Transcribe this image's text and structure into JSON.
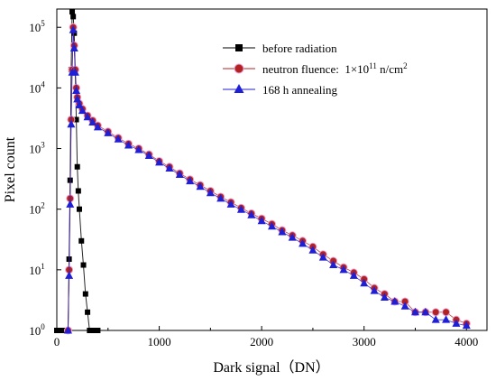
{
  "chart_data": {
    "type": "line",
    "xlabel": "Dark signal（DN）",
    "ylabel": "Pixel count",
    "xlim": [
      0,
      4200
    ],
    "ylim": [
      1,
      200000
    ],
    "yscale": "log",
    "x_ticks": [
      "0",
      "1000",
      "2000",
      "3000",
      "4000"
    ],
    "y_ticks": [
      {
        "value": 1,
        "base": "10",
        "exp": "0"
      },
      {
        "value": 10,
        "base": "10",
        "exp": "1"
      },
      {
        "value": 100,
        "base": "10",
        "exp": "2"
      },
      {
        "value": 1000,
        "base": "10",
        "exp": "3"
      },
      {
        "value": 10000,
        "base": "10",
        "exp": "4"
      },
      {
        "value": 100000,
        "base": "10",
        "exp": "5"
      }
    ],
    "legend_position": "top-right",
    "legend": [
      {
        "name": "before radiation",
        "marker": "square",
        "color": "#000000"
      },
      {
        "name_prefix": "neutron fluence:  1×10",
        "name_sup": "11",
        "name_mid": " n/cm",
        "name_sup2": "2",
        "marker": "circle",
        "color": "#b22222"
      },
      {
        "name": "168 h annealing",
        "marker": "triangle",
        "color": "#1f1fd6"
      }
    ],
    "series": [
      {
        "name": "before radiation",
        "marker": "square",
        "color": "#000000",
        "points": [
          [
            0,
            1
          ],
          [
            40,
            1
          ],
          [
            80,
            1
          ],
          [
            110,
            1
          ],
          [
            120,
            15
          ],
          [
            130,
            300
          ],
          [
            140,
            20000
          ],
          [
            150,
            180000
          ],
          [
            160,
            150000
          ],
          [
            170,
            80000
          ],
          [
            180,
            20000
          ],
          [
            190,
            3000
          ],
          [
            200,
            500
          ],
          [
            210,
            200
          ],
          [
            220,
            100
          ],
          [
            240,
            30
          ],
          [
            260,
            12
          ],
          [
            280,
            4
          ],
          [
            300,
            2
          ],
          [
            320,
            1
          ],
          [
            360,
            1
          ],
          [
            400,
            1
          ]
        ]
      },
      {
        "name": "neutron fluence: 1×10^11 n/cm^2",
        "marker": "circle",
        "color": "#b22222",
        "points": [
          [
            110,
            1
          ],
          [
            120,
            10
          ],
          [
            130,
            150
          ],
          [
            140,
            3000
          ],
          [
            150,
            20000
          ],
          [
            160,
            100000
          ],
          [
            170,
            50000
          ],
          [
            180,
            20000
          ],
          [
            190,
            10000
          ],
          [
            200,
            7000
          ],
          [
            220,
            5500
          ],
          [
            250,
            4500
          ],
          [
            300,
            3500
          ],
          [
            350,
            2900
          ],
          [
            400,
            2400
          ],
          [
            500,
            1900
          ],
          [
            600,
            1500
          ],
          [
            700,
            1200
          ],
          [
            800,
            1000
          ],
          [
            900,
            800
          ],
          [
            1000,
            620
          ],
          [
            1100,
            500
          ],
          [
            1200,
            390
          ],
          [
            1300,
            310
          ],
          [
            1400,
            250
          ],
          [
            1500,
            200
          ],
          [
            1600,
            160
          ],
          [
            1700,
            130
          ],
          [
            1800,
            105
          ],
          [
            1900,
            85
          ],
          [
            2000,
            70
          ],
          [
            2100,
            57
          ],
          [
            2200,
            45
          ],
          [
            2300,
            37
          ],
          [
            2400,
            30
          ],
          [
            2500,
            24
          ],
          [
            2600,
            18
          ],
          [
            2700,
            14
          ],
          [
            2800,
            11
          ],
          [
            2900,
            9
          ],
          [
            3000,
            7
          ],
          [
            3100,
            5
          ],
          [
            3200,
            4
          ],
          [
            3300,
            3
          ],
          [
            3400,
            3
          ],
          [
            3500,
            2
          ],
          [
            3600,
            2
          ],
          [
            3700,
            2
          ],
          [
            3800,
            2
          ],
          [
            3900,
            1.5
          ],
          [
            4000,
            1.3
          ]
        ]
      },
      {
        "name": "168 h annealing",
        "marker": "triangle",
        "color": "#1f1fd6",
        "points": [
          [
            110,
            1
          ],
          [
            120,
            8
          ],
          [
            130,
            120
          ],
          [
            140,
            2500
          ],
          [
            150,
            18000
          ],
          [
            160,
            90000
          ],
          [
            170,
            45000
          ],
          [
            180,
            18000
          ],
          [
            190,
            9000
          ],
          [
            200,
            6500
          ],
          [
            220,
            5200
          ],
          [
            250,
            4200
          ],
          [
            300,
            3300
          ],
          [
            350,
            2700
          ],
          [
            400,
            2250
          ],
          [
            500,
            1800
          ],
          [
            600,
            1420
          ],
          [
            700,
            1130
          ],
          [
            800,
            950
          ],
          [
            900,
            760
          ],
          [
            1000,
            590
          ],
          [
            1100,
            470
          ],
          [
            1200,
            370
          ],
          [
            1300,
            290
          ],
          [
            1400,
            235
          ],
          [
            1500,
            185
          ],
          [
            1600,
            150
          ],
          [
            1700,
            120
          ],
          [
            1800,
            98
          ],
          [
            1900,
            80
          ],
          [
            2000,
            64
          ],
          [
            2100,
            52
          ],
          [
            2200,
            42
          ],
          [
            2300,
            34
          ],
          [
            2400,
            27
          ],
          [
            2500,
            21
          ],
          [
            2600,
            16
          ],
          [
            2700,
            12
          ],
          [
            2800,
            10
          ],
          [
            2900,
            8
          ],
          [
            3000,
            6
          ],
          [
            3100,
            4.5
          ],
          [
            3200,
            3.5
          ],
          [
            3300,
            3
          ],
          [
            3400,
            2.5
          ],
          [
            3500,
            2
          ],
          [
            3600,
            2
          ],
          [
            3700,
            1.5
          ],
          [
            3800,
            1.5
          ],
          [
            3900,
            1.3
          ],
          [
            4000,
            1.2
          ]
        ]
      }
    ]
  }
}
